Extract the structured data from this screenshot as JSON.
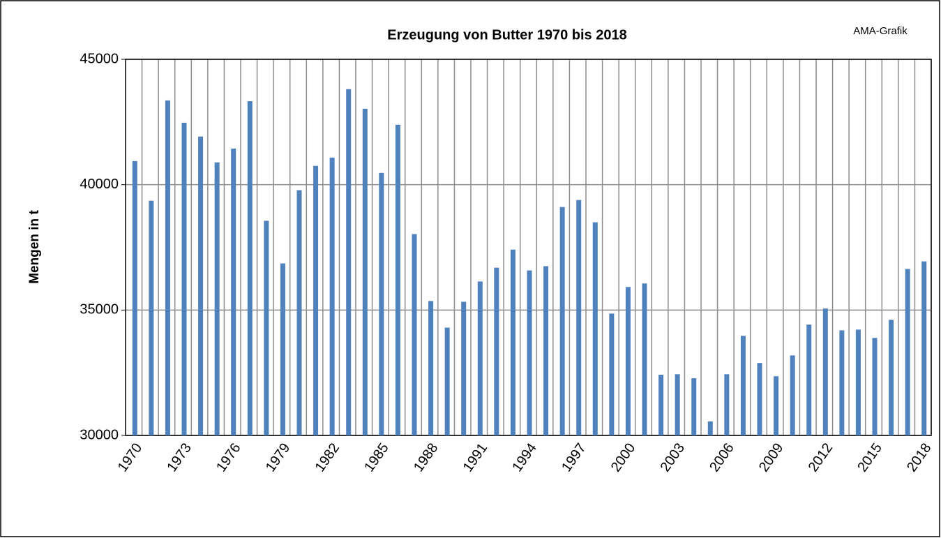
{
  "chart_data": {
    "type": "bar",
    "title": "Erzeugung von Butter 1970 bis 2018",
    "annotation": "AMA-Grafik",
    "y_label": "Mengen in t",
    "categories": [
      "1970",
      null,
      null,
      "1973",
      null,
      null,
      "1976",
      null,
      null,
      "1979",
      null,
      null,
      "1982",
      null,
      null,
      "1985",
      null,
      null,
      "1988",
      null,
      null,
      "1991",
      null,
      null,
      "1994",
      null,
      null,
      "1997",
      null,
      null,
      "2000",
      null,
      null,
      "2003",
      null,
      null,
      "2006",
      null,
      null,
      "2009",
      null,
      null,
      "2012",
      null,
      null,
      "2015",
      null,
      null,
      "2018"
    ],
    "values": [
      40940,
      39360,
      43360,
      42470,
      41920,
      40890,
      41440,
      43330,
      38560,
      36860,
      39780,
      40750,
      41080,
      43810,
      43030,
      40470,
      42390,
      38030,
      35360,
      34300,
      35330,
      36140,
      36690,
      37410,
      36580,
      36750,
      39110,
      39390,
      38500,
      34860,
      35920,
      36060,
      32420,
      32440,
      32280,
      30560,
      32440,
      33970,
      32890,
      32360,
      33190,
      34420,
      35060,
      34190,
      34220,
      33890,
      34610,
      36640,
      36940
    ],
    "color": "#4f81bd",
    "ylim": [
      30000,
      45000
    ],
    "yticks": [
      30000,
      35000,
      40000,
      45000
    ],
    "grid": true,
    "xgrid": true
  }
}
